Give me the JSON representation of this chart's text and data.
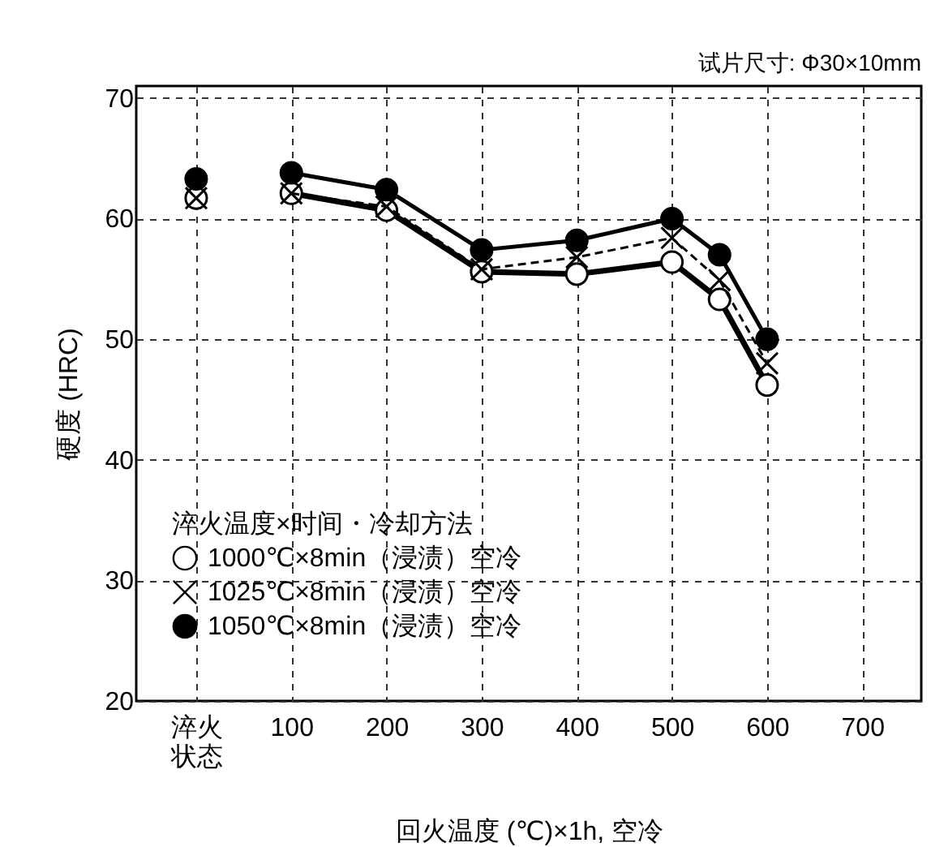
{
  "chart_data": {
    "type": "line",
    "xlabel": "回火温度 (℃)×1h, 空冷",
    "ylabel": "硬度 (HRC)",
    "legend_title": "淬火温度×时间・冷却方法",
    "annotations": [
      "试片尺寸: Φ30×10mm"
    ],
    "x": [
      0,
      50,
      100,
      200,
      300,
      400,
      500,
      550,
      600
    ],
    "series": [
      {
        "name": "1000℃×8min（浸渍）空冷",
        "color": "#000000",
        "marker": "circle",
        "line_style": "solid",
        "values": [
          61.7,
          null,
          62.1,
          60.7,
          55.6,
          55.4,
          56.4,
          53.3,
          46.2
        ]
      },
      {
        "name": "1025℃×8min（浸渍）空冷",
        "color": "#000000",
        "marker": "cross",
        "line_style": "dashed",
        "values": [
          61.7,
          null,
          62.1,
          61.0,
          55.8,
          56.8,
          58.4,
          54.9,
          48.0
        ]
      },
      {
        "name": "1050℃×8min（浸渍）空冷",
        "color": "#000000",
        "marker": "circle",
        "line_style": "solid",
        "values": [
          63.3,
          null,
          63.8,
          62.4,
          57.4,
          58.2,
          60.0,
          57.0,
          50.0
        ]
      }
    ],
    "xlim": [
      -63,
      762
    ],
    "xticks": [
      {
        "value": 0,
        "label": "淬火状态"
      },
      100,
      200,
      300,
      400,
      500,
      600,
      700
    ],
    "ylim": [
      20,
      71
    ],
    "yticks": [
      20,
      30,
      40,
      50,
      60,
      70
    ],
    "grid": true,
    "legend": "bottom left"
  }
}
